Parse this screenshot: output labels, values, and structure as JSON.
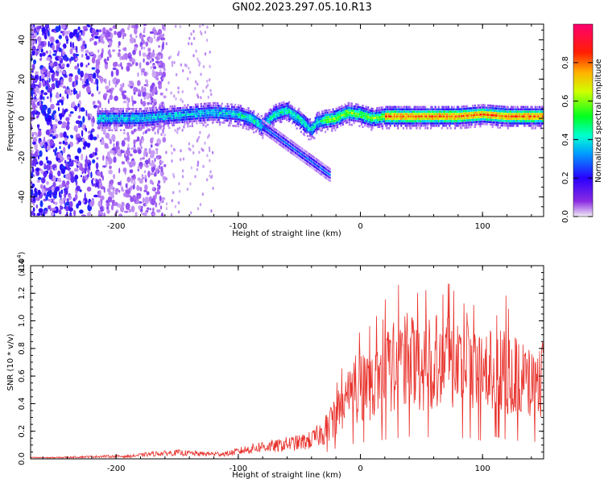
{
  "title": "GN02.2023.297.05.10.R13",
  "chart_data": [
    {
      "type": "heatmap",
      "xlabel": "Height of straight line (km)",
      "ylabel": "Frequency (Hz)",
      "xlim": [
        -270,
        150
      ],
      "ylim": [
        -50,
        48
      ],
      "xticks": [
        -200,
        -100,
        0,
        100
      ],
      "yticks": [
        40,
        20,
        0,
        -20,
        -40
      ],
      "ridge": {
        "x": [
          -215,
          -200,
          -180,
          -160,
          -140,
          -120,
          -100,
          -90,
          -80,
          -70,
          -60,
          -50,
          -40,
          -35,
          -30,
          -20,
          -10,
          0,
          10,
          20,
          40,
          60,
          80,
          100,
          120,
          150
        ],
        "y": [
          0,
          0,
          0,
          1,
          2,
          3,
          2,
          0,
          -4,
          2,
          4,
          0,
          -6,
          -2,
          -1,
          0,
          3,
          2,
          0,
          1,
          1,
          1,
          1,
          2,
          1,
          1
        ]
      },
      "colorbar": {
        "label": "Normalized spectral amplitude",
        "ticks": [
          "0.0",
          "0.2",
          "0.4",
          "0.6",
          "0.8"
        ],
        "range": [
          0,
          1
        ]
      }
    },
    {
      "type": "line",
      "xlabel": "Height of straight line (km)",
      "ylabel": "SNR (10 * v/v)",
      "multiplier": "(x10",
      "multiplier_exp": "4",
      "multiplier_close": ")",
      "xlim": [
        -270,
        150
      ],
      "ylim": [
        0,
        1.4
      ],
      "xticks": [
        -200,
        -100,
        0,
        100
      ],
      "ytick_labels": [
        "0.0",
        "0.2",
        "0.4",
        "0.6",
        "0.8",
        "1.0",
        "1.2",
        "1.4"
      ],
      "color": "#e8302a",
      "series": [
        {
          "x": [
            -270,
            -250,
            -230,
            -210,
            -190,
            -170,
            -150,
            -130,
            -110,
            -100,
            -90,
            -80,
            -70,
            -60,
            -50,
            -40,
            -30,
            -25,
            -20,
            -15,
            -10,
            -5,
            0,
            10,
            20,
            30,
            40,
            50,
            60,
            70,
            80,
            90,
            100,
            110,
            120,
            130,
            140,
            150
          ],
          "y": [
            0.01,
            0.01,
            0.015,
            0.02,
            0.02,
            0.04,
            0.05,
            0.04,
            0.04,
            0.06,
            0.08,
            0.1,
            0.1,
            0.12,
            0.13,
            0.15,
            0.22,
            0.28,
            0.38,
            0.45,
            0.5,
            0.55,
            0.6,
            0.6,
            0.7,
            0.75,
            0.8,
            0.75,
            0.8,
            0.85,
            0.75,
            0.75,
            0.65,
            0.8,
            0.7,
            0.65,
            0.6,
            0.65
          ]
        }
      ]
    }
  ]
}
